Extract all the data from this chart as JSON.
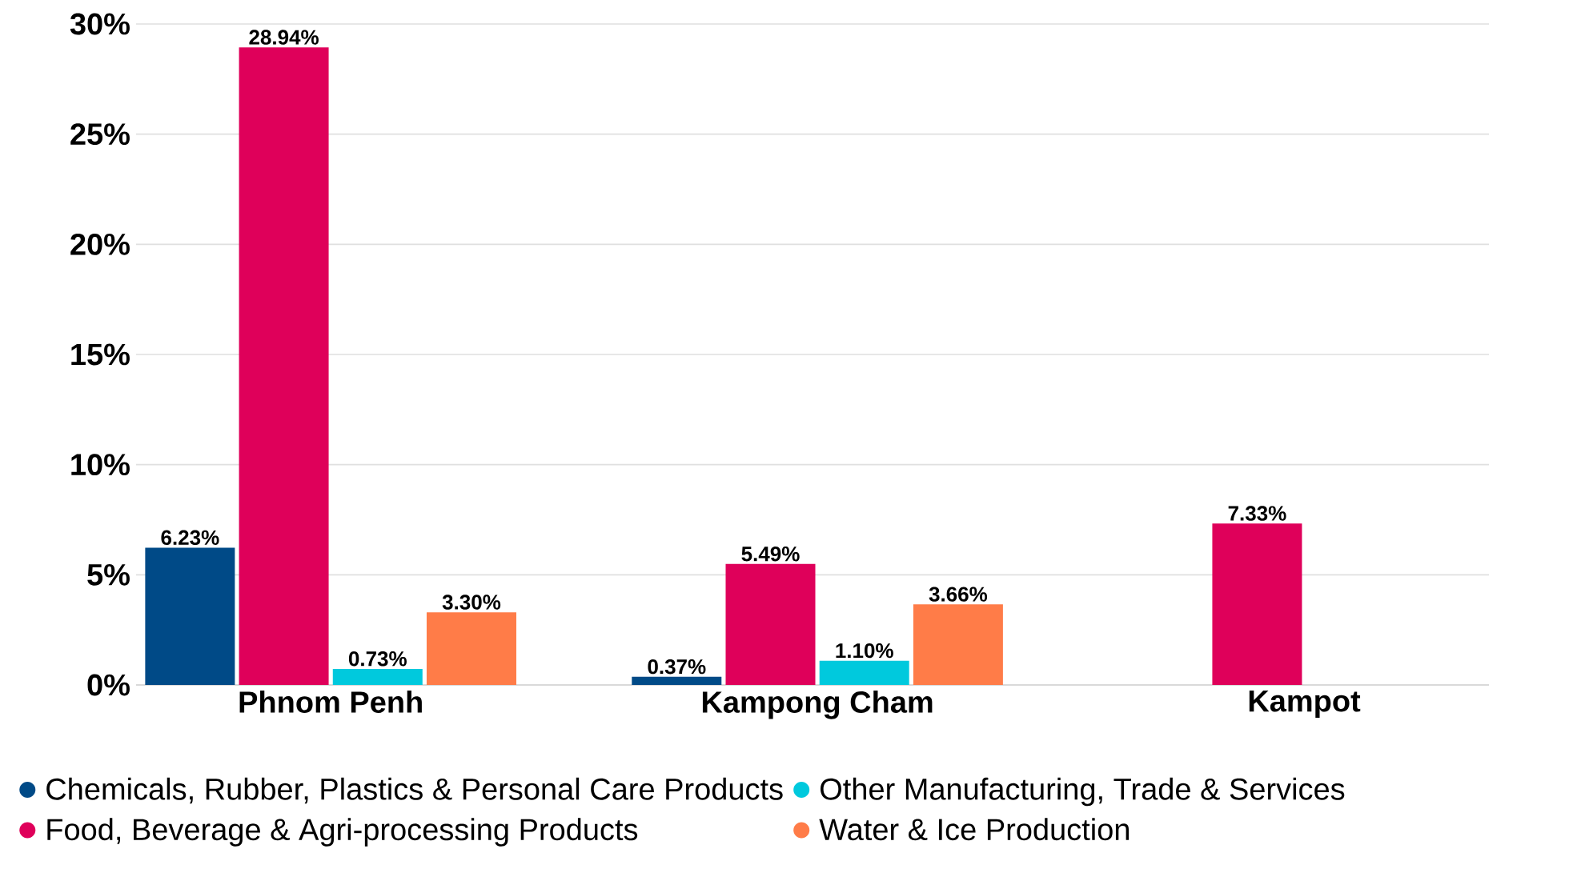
{
  "chart_data": {
    "type": "bar",
    "categories": [
      "Phnom Penh",
      "Kampong Cham",
      "Kampot"
    ],
    "series": [
      {
        "name": "Chemicals, Rubber, Plastics & Personal Care Products",
        "color": "#004a87",
        "values": [
          6.23,
          0.37,
          null
        ],
        "value_labels": [
          "6.23%",
          "0.37%",
          null
        ]
      },
      {
        "name": "Food, Beverage & Agri-processing Products",
        "color": "#df005a",
        "values": [
          28.94,
          5.49,
          7.33
        ],
        "value_labels": [
          "28.94%",
          "5.49%",
          "7.33%"
        ]
      },
      {
        "name": "Other Manufacturing, Trade & Services",
        "color": "#00c9dd",
        "values": [
          0.73,
          1.1,
          null
        ],
        "value_labels": [
          "0.73%",
          "1.10%",
          null
        ]
      },
      {
        "name": "Water & Ice Production",
        "color": "#ff7c48",
        "values": [
          3.3,
          3.66,
          null
        ],
        "value_labels": [
          "3.30%",
          "3.66%",
          null
        ]
      }
    ],
    "ylim": [
      0,
      30
    ],
    "yticks": [
      {
        "value": 0,
        "label": "0%"
      },
      {
        "value": 5,
        "label": "5%"
      },
      {
        "value": 10,
        "label": "10%"
      },
      {
        "value": 15,
        "label": "15%"
      },
      {
        "value": 20,
        "label": "20%"
      },
      {
        "value": 25,
        "label": "25%"
      },
      {
        "value": 30,
        "label": "30%"
      }
    ],
    "grid": "y",
    "legend": "bottom"
  }
}
